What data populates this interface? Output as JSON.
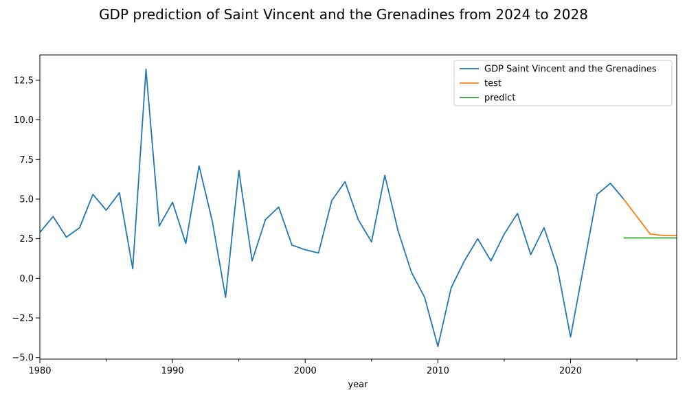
{
  "chart_data": {
    "type": "line",
    "title": "GDP prediction of Saint Vincent and the Grenadines from 2024 to 2028",
    "xlabel": "year",
    "ylabel": "",
    "xlim": [
      1980,
      2028
    ],
    "ylim": [
      -5.1,
      14.1
    ],
    "xticks": [
      1980,
      1990,
      2000,
      2010,
      2020
    ],
    "xticks_minor": [
      1985,
      1995,
      2005,
      2015,
      2025
    ],
    "yticks": [
      -5.0,
      -2.5,
      0.0,
      2.5,
      5.0,
      7.5,
      10.0,
      12.5
    ],
    "ytick_labels": [
      "−5.0",
      "−2.5",
      "0.0",
      "2.5",
      "5.0",
      "7.5",
      "10.0",
      "12.5"
    ],
    "xtick_labels": [
      "1980",
      "1990",
      "2000",
      "2010",
      "2020"
    ],
    "grid": false,
    "legend_position": "top-right",
    "series": [
      {
        "name": "GDP Saint Vincent and the Grenadines",
        "color": "#1f77b4",
        "x": [
          1980,
          1981,
          1982,
          1983,
          1984,
          1985,
          1986,
          1987,
          1988,
          1989,
          1990,
          1991,
          1992,
          1993,
          1994,
          1995,
          1996,
          1997,
          1998,
          1999,
          2000,
          2001,
          2002,
          2003,
          2004,
          2005,
          2006,
          2007,
          2008,
          2009,
          2010,
          2011,
          2012,
          2013,
          2014,
          2015,
          2016,
          2017,
          2018,
          2019,
          2020,
          2021,
          2022,
          2023,
          2024
        ],
        "values": [
          2.9,
          3.9,
          2.6,
          3.2,
          5.3,
          4.3,
          5.4,
          0.6,
          13.2,
          3.3,
          4.8,
          2.2,
          7.1,
          3.6,
          -1.2,
          6.8,
          1.1,
          3.7,
          4.5,
          2.1,
          1.8,
          1.6,
          4.9,
          6.1,
          3.7,
          2.3,
          6.5,
          3.0,
          0.4,
          -1.2,
          -4.3,
          -0.6,
          1.1,
          2.5,
          1.1,
          2.8,
          4.1,
          1.5,
          3.2,
          0.7,
          -3.7,
          0.8,
          5.3,
          6.0,
          5.0
        ]
      },
      {
        "name": "test",
        "color": "#ff7f0e",
        "x": [
          2024,
          2025,
          2026,
          2027,
          2028
        ],
        "values": [
          5.0,
          3.9,
          2.8,
          2.7,
          2.7
        ]
      },
      {
        "name": "predict",
        "color": "#2ca02c",
        "x": [
          2024,
          2025,
          2026,
          2027,
          2028
        ],
        "values": [
          2.55,
          2.55,
          2.55,
          2.55,
          2.55
        ]
      }
    ]
  }
}
